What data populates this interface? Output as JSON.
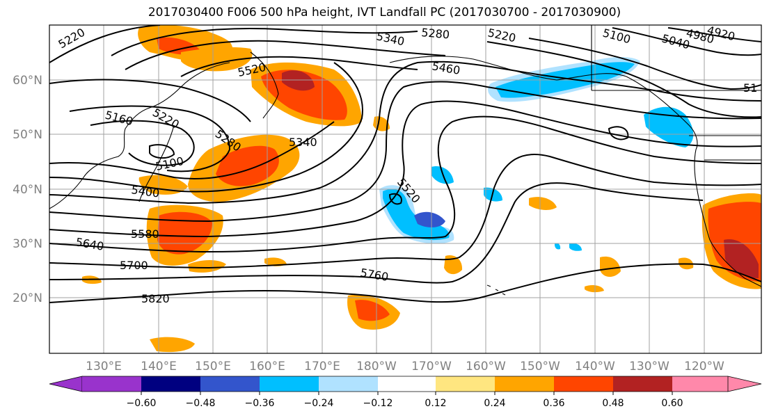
{
  "title": "2017030400 F006 500 hPa height, IVT Landfall PC (2017030700 - 2017030900)",
  "latitude_labels": [
    "60°N",
    "50°N",
    "40°N",
    "30°N",
    "20°N"
  ],
  "longitude_labels": [
    "130°E",
    "140°E",
    "150°E",
    "160°E",
    "170°E",
    "180°W",
    "170°W",
    "160°W",
    "150°W",
    "140°W",
    "130°W",
    "120°W"
  ],
  "height_contour_labels": [
    "5220",
    "5340",
    "5280",
    "5220",
    "5100",
    "4980",
    "5040",
    "4920",
    "5460",
    "5520",
    "5160",
    "5220",
    "5280",
    "5340",
    "5100",
    "5400",
    "5520",
    "5580",
    "5640",
    "5700",
    "5760",
    "5820",
    "51"
  ],
  "colorbar": {
    "tick_labels": [
      "−0.60",
      "−0.48",
      "−0.36",
      "−0.24",
      "−0.12",
      "0.12",
      "0.24",
      "0.36",
      "0.48",
      "0.60"
    ],
    "colors": [
      "#9933cc",
      "#000080",
      "#3355cc",
      "#00bfff",
      "#b0e2ff",
      "#ffffff",
      "#ffe680",
      "#ffa500",
      "#ff4500",
      "#b22222",
      "#ff88aa"
    ]
  },
  "colors": {
    "land_outline": "#000000",
    "grid": "#a0a0a0",
    "contour": "#000000"
  }
}
